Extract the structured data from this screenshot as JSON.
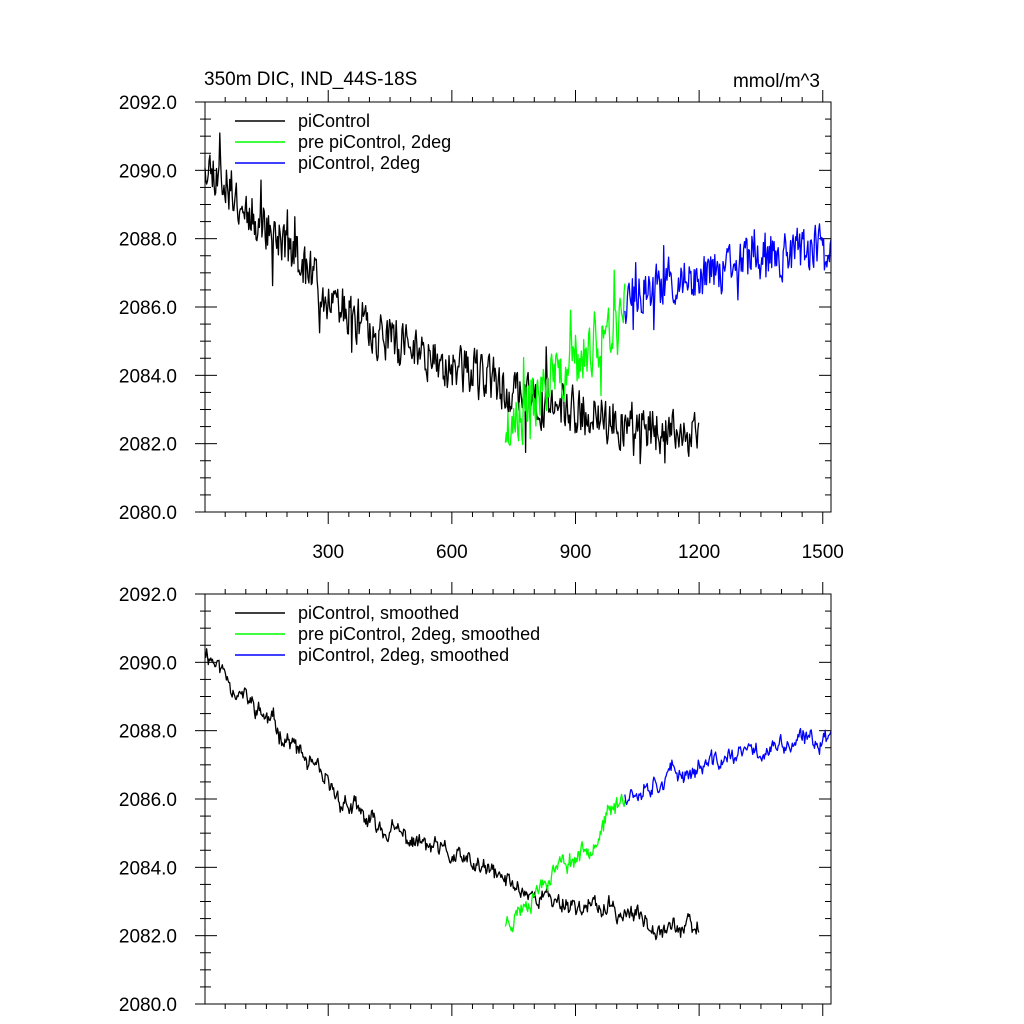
{
  "chart_data": [
    {
      "type": "line",
      "title_left": "350m DIC, IND_44S-18S",
      "title_right": "mmol/m^3",
      "xlim": [
        1,
        1520
      ],
      "ylim": [
        2080,
        2092
      ],
      "x_ticks": [
        300,
        600,
        900,
        1200,
        1500
      ],
      "x_tick_labels": [
        "300",
        "600",
        "900",
        "1200",
        "1500"
      ],
      "y_ticks": [
        2080,
        2082,
        2084,
        2086,
        2088,
        2090,
        2092
      ],
      "y_tick_labels": [
        "2080.0",
        "2082.0",
        "2084.0",
        "2086.0",
        "2088.0",
        "2090.0",
        "2092.0"
      ],
      "legend": [
        "piControl",
        "pre piControl, 2deg",
        "piControl, 2deg"
      ],
      "legend_position": "top-left",
      "series": [
        {
          "name": "piControl",
          "color": "#000000",
          "x": [
            1,
            100,
            200,
            300,
            400,
            500,
            600,
            700,
            730,
            800,
            900,
            1000,
            1100,
            1200
          ],
          "values": [
            2090.4,
            2088.9,
            2087.8,
            2086.3,
            2085.3,
            2084.8,
            2084.3,
            2083.8,
            2083.6,
            2083.2,
            2082.9,
            2082.7,
            2082.4,
            2082.1
          ],
          "noise": 0.6,
          "seed": 11
        },
        {
          "name": "pre piControl, 2deg",
          "color": "#00ff00",
          "x": [
            730,
            750,
            800,
            850,
            900,
            950,
            1000,
            1020
          ],
          "values": [
            2082.4,
            2082.6,
            2083.3,
            2084.0,
            2084.3,
            2084.9,
            2085.8,
            2086.2
          ],
          "noise": 0.7,
          "seed": 23
        },
        {
          "name": "piControl, 2deg",
          "color": "#0000ff",
          "x": [
            1020,
            1100,
            1200,
            1300,
            1400,
            1500,
            1520
          ],
          "values": [
            2086.2,
            2086.6,
            2086.9,
            2087.3,
            2087.5,
            2087.8,
            2087.9
          ],
          "noise": 0.6,
          "seed": 37
        }
      ]
    },
    {
      "type": "line",
      "title_left": "",
      "title_right": "",
      "xlim": [
        1,
        1520
      ],
      "ylim": [
        2080,
        2092
      ],
      "x_ticks": [
        300,
        600,
        900,
        1200,
        1500
      ],
      "x_tick_labels": [],
      "y_ticks": [
        2080,
        2082,
        2084,
        2086,
        2088,
        2090,
        2092
      ],
      "y_tick_labels": [
        "2080.0",
        "2082.0",
        "2084.0",
        "2086.0",
        "2088.0",
        "2090.0",
        "2092.0"
      ],
      "legend": [
        "piControl, smoothed",
        "pre piControl, 2deg, smoothed",
        "piControl, 2deg, smoothed"
      ],
      "legend_position": "top-left",
      "series": [
        {
          "name": "piControl, smoothed",
          "color": "#000000",
          "x": [
            1,
            100,
            200,
            300,
            400,
            500,
            600,
            700,
            730,
            800,
            900,
            1000,
            1100,
            1200
          ],
          "values": [
            2090.4,
            2088.9,
            2087.8,
            2086.3,
            2085.3,
            2084.8,
            2084.3,
            2083.8,
            2083.6,
            2083.2,
            2082.9,
            2082.7,
            2082.4,
            2082.1
          ],
          "noise": 0.3,
          "seed": 11
        },
        {
          "name": "pre piControl, 2deg, smoothed",
          "color": "#00ff00",
          "x": [
            730,
            750,
            800,
            850,
            900,
            950,
            1000,
            1020
          ],
          "values": [
            2082.4,
            2082.6,
            2083.3,
            2084.0,
            2084.3,
            2084.9,
            2085.8,
            2086.2
          ],
          "noise": 0.3,
          "seed": 23
        },
        {
          "name": "piControl, 2deg, smoothed",
          "color": "#0000ff",
          "x": [
            1020,
            1100,
            1200,
            1300,
            1400,
            1500,
            1520
          ],
          "values": [
            2086.2,
            2086.6,
            2086.9,
            2087.3,
            2087.5,
            2087.8,
            2087.9
          ],
          "noise": 0.3,
          "seed": 37
        }
      ]
    }
  ]
}
